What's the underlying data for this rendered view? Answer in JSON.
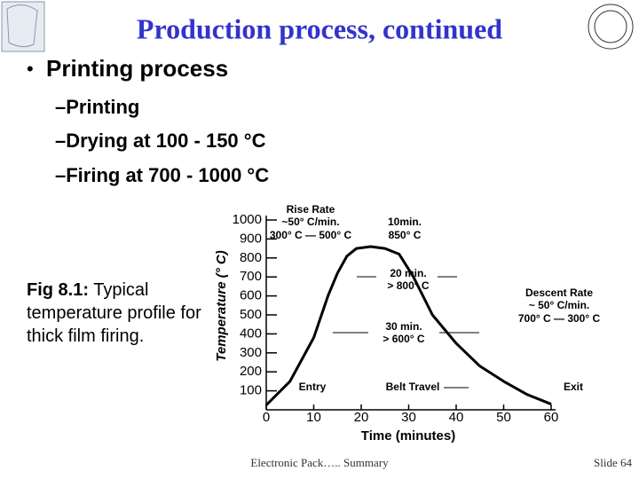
{
  "header": {
    "title": "Production process, continued"
  },
  "bullets": {
    "main": "Printing process",
    "items": [
      "–Printing",
      "–Drying at 100 - 150 °C",
      "–Firing at 700 - 1000 °C"
    ]
  },
  "caption": {
    "label": "Fig 8.1:",
    "text": " Typical temperature profile for thick film firing."
  },
  "footer": {
    "center": "Electronic Pack….. Summary",
    "slide": "Slide 64"
  },
  "chart_data": {
    "type": "line",
    "x_label": "Time (minutes)",
    "y_label": "Temperature (° C)",
    "x": [
      0,
      5,
      10,
      13,
      15,
      17,
      19,
      22,
      25,
      28,
      31,
      35,
      40,
      45,
      50,
      55,
      60
    ],
    "series": [
      {
        "name": "Temperature",
        "color": "#000000",
        "values": [
          25,
          150,
          380,
          600,
          720,
          810,
          850,
          860,
          850,
          820,
          700,
          500,
          350,
          230,
          150,
          80,
          30
        ]
      }
    ],
    "xlim": [
      0,
      60
    ],
    "xticks": [
      0,
      10,
      20,
      30,
      40,
      50,
      60
    ],
    "ylim": [
      0,
      1000
    ],
    "yticks": [
      100,
      200,
      300,
      400,
      500,
      600,
      700,
      800,
      900,
      1000
    ],
    "annotations": [
      "Rise Rate",
      "~50° C/min.",
      "300° C — 500° C",
      "10min.",
      "850° C",
      "20 min.",
      "> 800° C",
      "30 min.",
      "> 600° C",
      "Descent Rate",
      "~ 50° C/min.",
      "700° C — 300° C",
      "Entry",
      "Belt Travel",
      "Exit"
    ]
  }
}
